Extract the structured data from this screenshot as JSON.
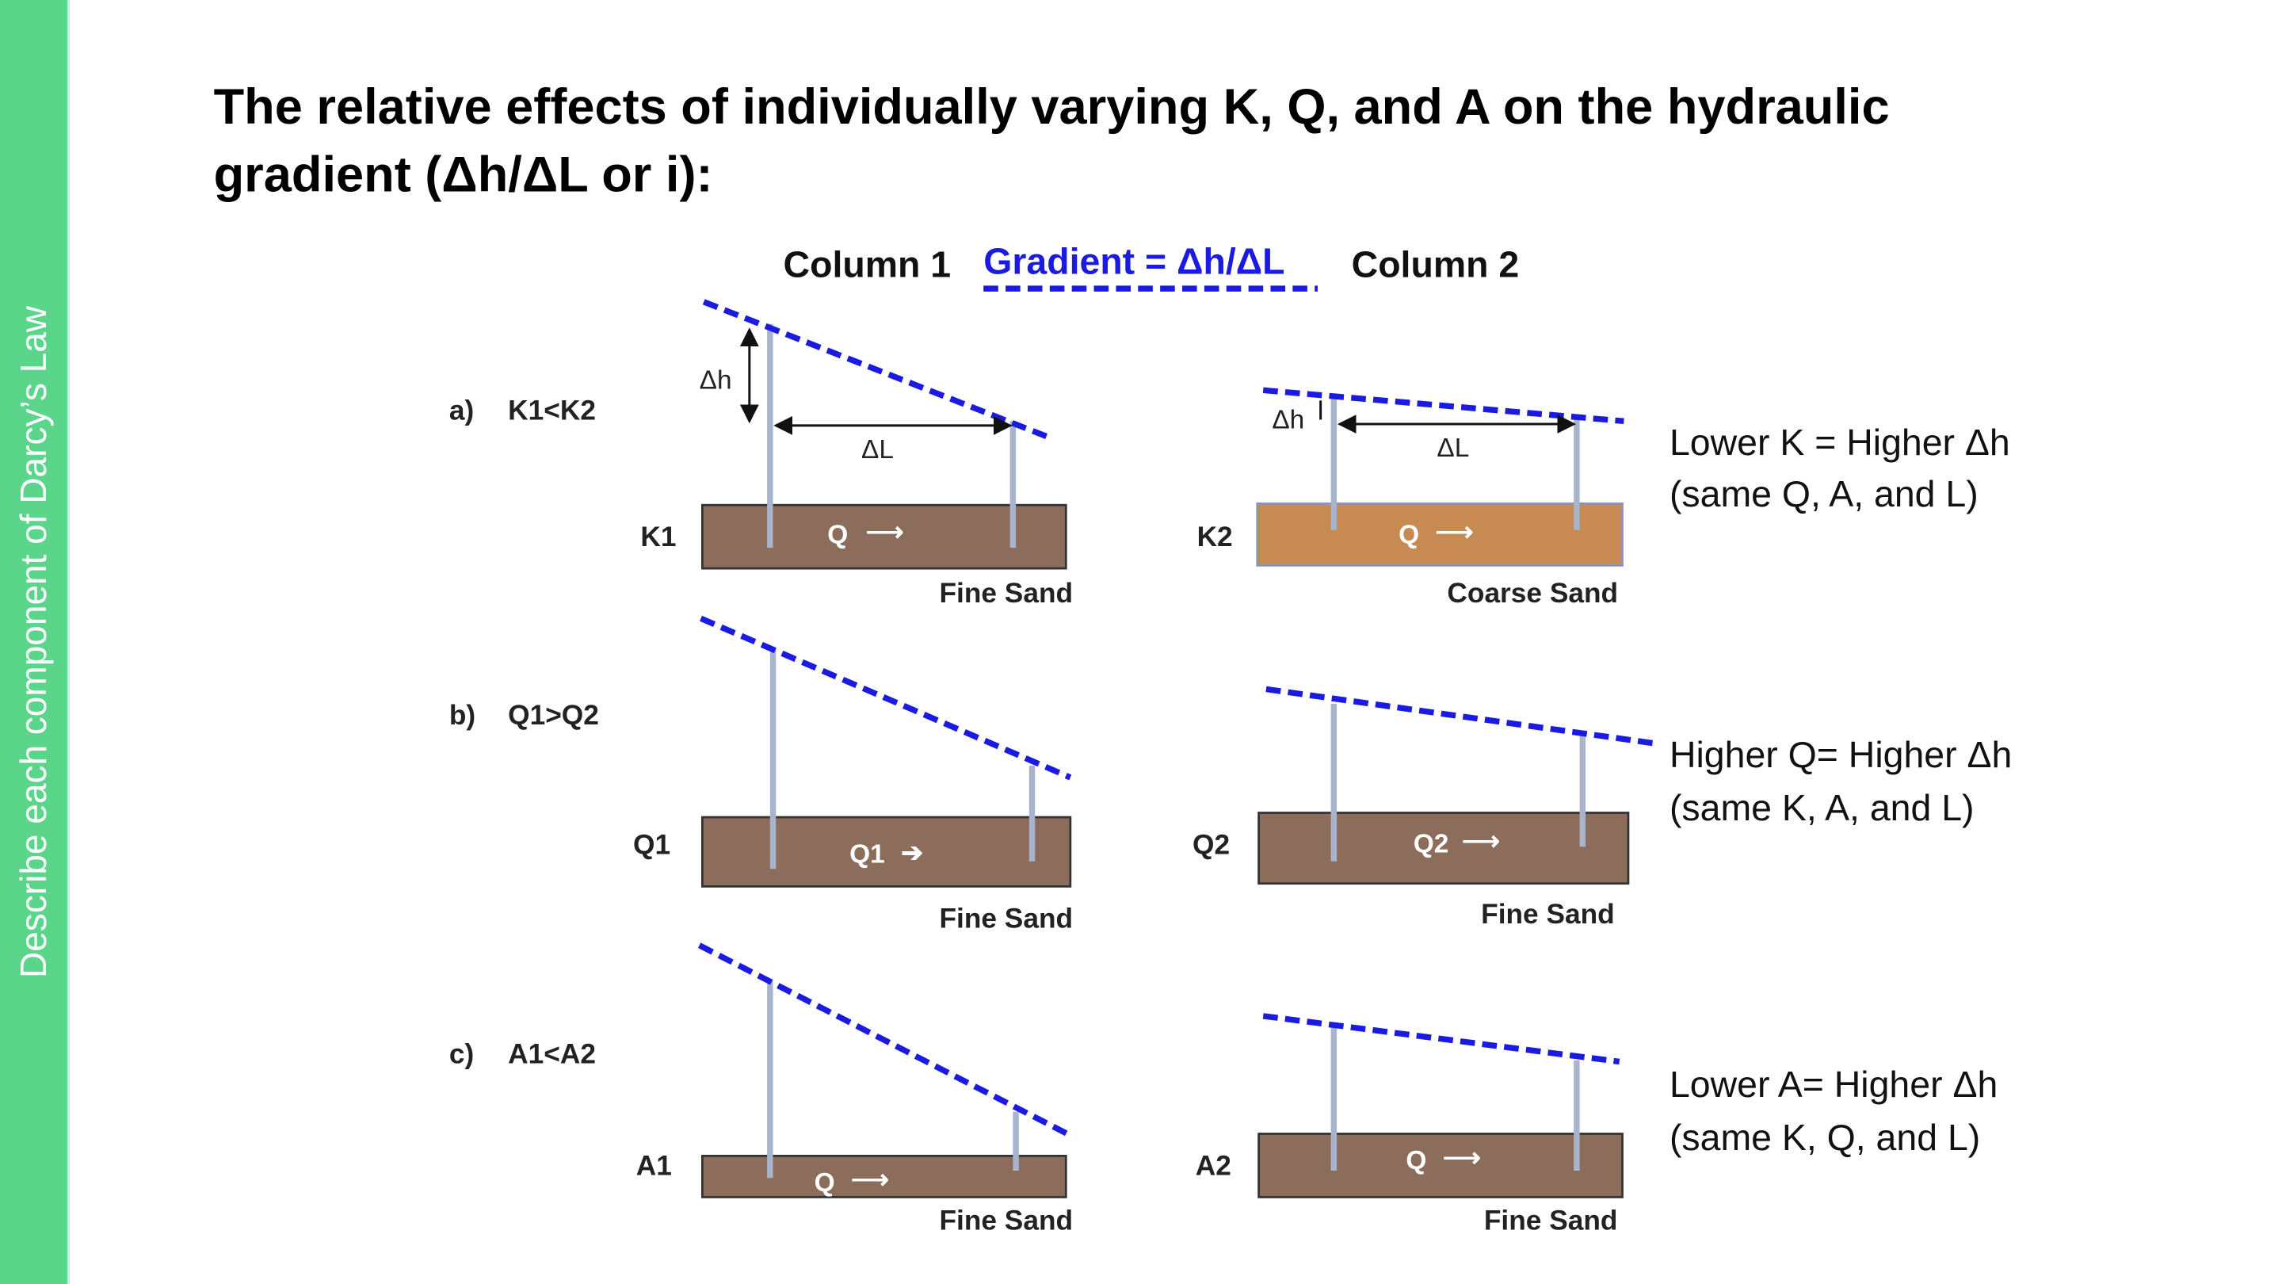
{
  "sidebar": {
    "text": "Describe each component of Darcy’s Law"
  },
  "title": {
    "line1": "The relative effects of individually varying K, Q, and A on the hydraulic",
    "line2": "gradient (Δh/ΔL or i):"
  },
  "header": {
    "column1": "Column 1",
    "gradient": "Gradient =  Δh/ΔL",
    "column2": "Column 2"
  },
  "colors": {
    "sidebar": "#5ad58a",
    "gradient_line": "#1a1ae0",
    "fine_sand": "#8c6d5c",
    "coarse_sand": "#c68a52"
  },
  "rows": [
    {
      "letter": "a)",
      "condition": "K1<K2",
      "left_label": "K1",
      "left_flow": "Q",
      "left_material": "Fine Sand",
      "right_label": "K2",
      "right_flow": "Q",
      "right_material": "Coarse Sand",
      "delta_h": "Δh",
      "delta_l": "ΔL",
      "desc1": "Lower K =  Higher Δh",
      "desc2": "(same Q, A, and L)"
    },
    {
      "letter": "b)",
      "condition": "Q1>Q2",
      "left_label": "Q1",
      "left_flow": "Q1",
      "left_material": "Fine Sand",
      "right_label": "Q2",
      "right_flow": "Q2",
      "right_material": "Fine Sand",
      "desc1": "Higher Q= Higher Δh",
      "desc2": "(same K, A, and L)"
    },
    {
      "letter": "c)",
      "condition": "A1<A2",
      "left_label": "A1",
      "left_flow": "Q",
      "left_material": "Fine Sand",
      "right_label": "A2",
      "right_flow": "Q",
      "right_material": "Fine Sand",
      "desc1": "Lower A= Higher Δh",
      "desc2": "(same K, Q, and L)"
    }
  ]
}
